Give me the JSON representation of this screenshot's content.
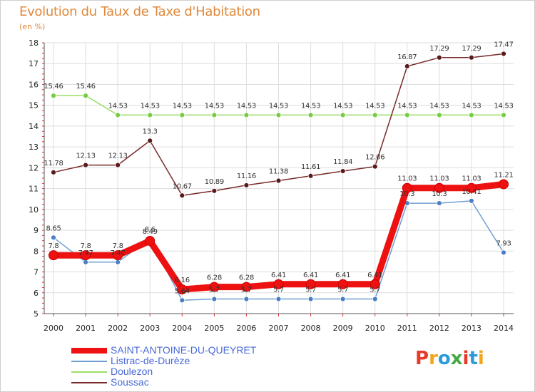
{
  "title": "Evolution du Taux de Taxe d'Habitation",
  "subtitle": "(en %)",
  "logo": {
    "text": "Proxiti",
    "colors": [
      "#e8392a",
      "#f4a51c",
      "#2c9bd8",
      "#44aa44",
      "#e8392a",
      "#2c9bd8",
      "#f4a51c"
    ]
  },
  "chart_data": {
    "type": "line",
    "title": "Evolution du Taux de Taxe d'Habitation",
    "ylabel": "(en %)",
    "xlabel": "",
    "x": [
      "2000",
      "2001",
      "2002",
      "2003",
      "2004",
      "2005",
      "2006",
      "2007",
      "2008",
      "2009",
      "2010",
      "2011",
      "2012",
      "2013",
      "2014"
    ],
    "ylim": [
      5,
      18
    ],
    "yticks": [
      "5",
      "6",
      "7",
      "8",
      "9",
      "10",
      "11",
      "12",
      "13",
      "14",
      "15",
      "16",
      "17",
      "18"
    ],
    "grid": true,
    "legend_position": "bottom-left",
    "series": [
      {
        "name": "SAINT-ANTOINE-DU-QUEYRET",
        "color": "#ee1111",
        "marker": "#ee1111",
        "bold": true,
        "values": [
          7.8,
          7.8,
          7.8,
          8.49,
          6.16,
          6.28,
          6.28,
          6.41,
          6.41,
          6.41,
          6.41,
          11.03,
          11.03,
          11.03,
          11.21
        ],
        "labels": [
          "7.8",
          "7.8",
          "7.8",
          "8.49",
          "6.16",
          "6.28",
          "6.28",
          "6.41",
          "6.41",
          "6.41",
          "6.41",
          "11.03",
          "11.03",
          "11.03",
          "11.21"
        ]
      },
      {
        "name": "Listrac-de-Durèze",
        "color": "#6f9fd2",
        "marker": "#4a7ec4",
        "bold": false,
        "values": [
          8.65,
          7.47,
          7.47,
          8.6,
          5.64,
          5.7,
          5.7,
          5.7,
          5.7,
          5.7,
          5.7,
          10.3,
          10.3,
          10.41,
          7.93
        ],
        "labels": [
          "8.65",
          "7.47",
          "7.47",
          "8.6",
          "5.64",
          "5.7",
          "5.7",
          "5.7",
          "5.7",
          "5.7",
          "5.7",
          "10.3",
          "10.3",
          "10.41",
          "7.93"
        ]
      },
      {
        "name": "Doulezon",
        "color": "#99dd66",
        "marker": "#77cc44",
        "bold": false,
        "values": [
          15.46,
          15.46,
          14.53,
          14.53,
          14.53,
          14.53,
          14.53,
          14.53,
          14.53,
          14.53,
          14.53,
          14.53,
          14.53,
          14.53,
          14.53
        ],
        "labels": [
          "15.46",
          "15.46",
          "14.53",
          "14.53",
          "14.53",
          "14.53",
          "14.53",
          "14.53",
          "14.53",
          "14.53",
          "14.53",
          "14.53",
          "14.53",
          "14.53",
          "14.53"
        ]
      },
      {
        "name": "Soussac",
        "color": "#7a2a2a",
        "marker": "#5a1a1a",
        "bold": false,
        "values": [
          11.78,
          12.13,
          12.13,
          13.3,
          10.67,
          10.89,
          11.16,
          11.38,
          11.61,
          11.84,
          12.06,
          16.87,
          17.29,
          17.29,
          17.47
        ],
        "labels": [
          "11.78",
          "12.13",
          "12.13",
          "13.3",
          "10.67",
          "10.89",
          "11.16",
          "11.38",
          "11.61",
          "11.84",
          "12.06",
          "16.87",
          "17.29",
          "17.29",
          "17.47"
        ]
      }
    ]
  }
}
